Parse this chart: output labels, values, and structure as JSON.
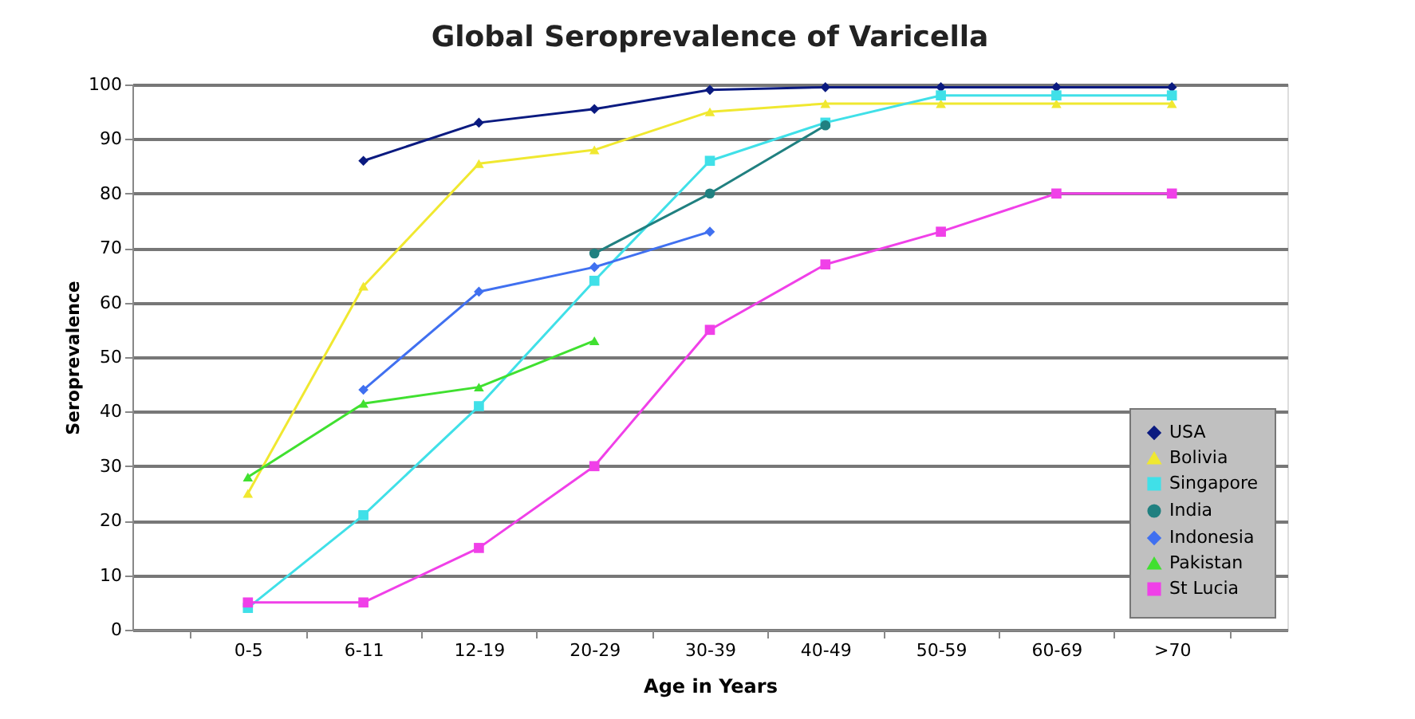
{
  "chart_data": {
    "type": "line",
    "title": "Global Seroprevalence of Varicella",
    "xlabel": "Age in Years",
    "ylabel": "Seroprevalence",
    "categories": [
      "0-5",
      "6-11",
      "12-19",
      "20-29",
      "30-39",
      "40-49",
      "50-59",
      "60-69",
      ">70"
    ],
    "ylim": [
      0,
      100
    ],
    "yticks": [
      0,
      10,
      20,
      30,
      40,
      50,
      60,
      70,
      80,
      90,
      100
    ],
    "grid": "y",
    "legend": "bottom right",
    "line_style": "solid",
    "series": [
      {
        "name": "USA",
        "color": "#0a1a80",
        "marker": "diamond",
        "values": [
          null,
          86,
          93,
          95.5,
          99,
          99.5,
          99.5,
          99.5,
          99.5
        ]
      },
      {
        "name": "Bolivia",
        "color": "#f0e830",
        "marker": "triangle",
        "values": [
          25,
          63,
          85.5,
          88,
          95,
          96.5,
          96.5,
          96.5,
          96.5
        ]
      },
      {
        "name": "Singapore",
        "color": "#40e0e8",
        "marker": "square",
        "values": [
          4,
          21,
          41,
          64,
          86,
          93,
          98,
          98,
          98
        ]
      },
      {
        "name": "India",
        "color": "#208080",
        "marker": "circle",
        "values": [
          null,
          null,
          null,
          69,
          80,
          92.5,
          null,
          null,
          null
        ]
      },
      {
        "name": "Indonesia",
        "color": "#4070f0",
        "marker": "diamond",
        "values": [
          null,
          44,
          62,
          66.5,
          73,
          null,
          null,
          null,
          null
        ]
      },
      {
        "name": "Pakistan",
        "color": "#40e030",
        "marker": "triangle",
        "values": [
          28,
          41.5,
          44.5,
          53,
          null,
          null,
          null,
          null,
          null
        ]
      },
      {
        "name": "St Lucia",
        "color": "#f040e8",
        "marker": "square",
        "values": [
          5,
          5,
          15,
          30,
          55,
          67,
          73,
          80,
          80
        ]
      }
    ]
  }
}
